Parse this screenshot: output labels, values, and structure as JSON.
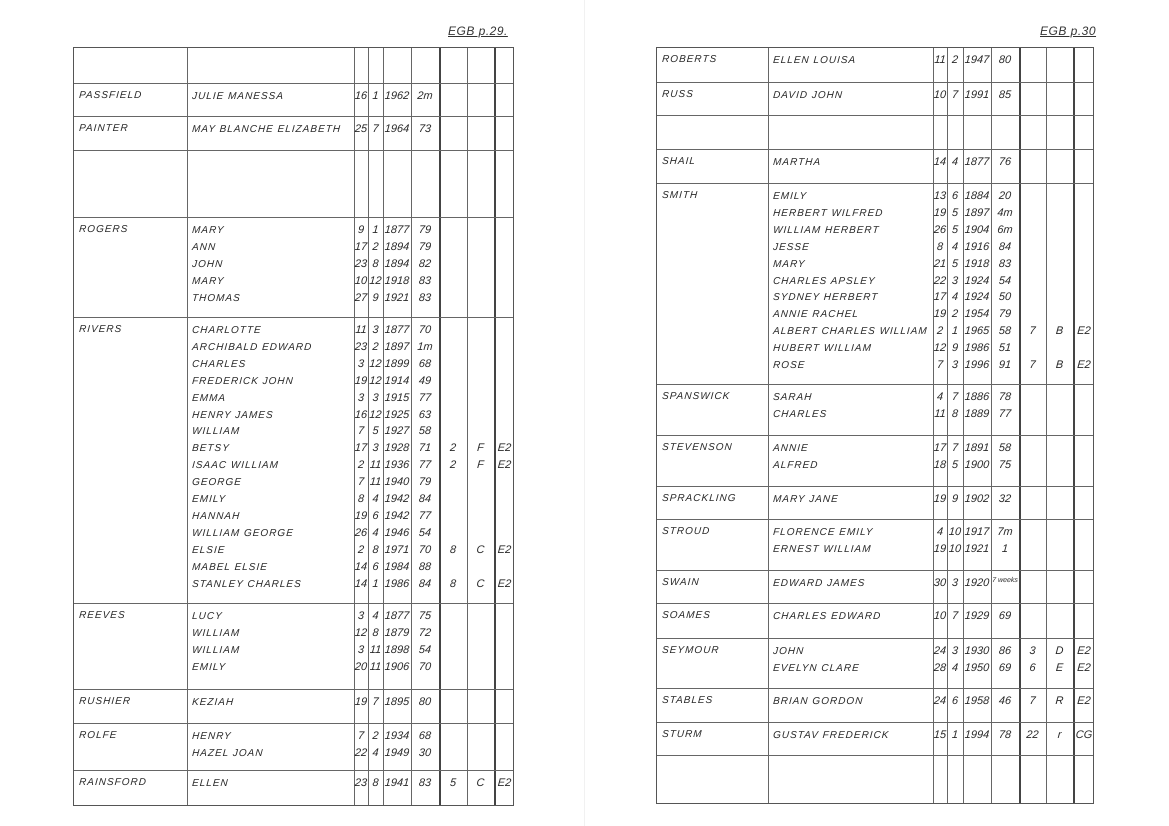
{
  "pages": [
    {
      "ref": "EGB p.29.",
      "groups": [
        {
          "surname": "",
          "entries": []
        },
        {
          "surname": "PASSFIELD",
          "entries": [
            {
              "forename": "JULIE MANESSA",
              "day": "16",
              "month": "1",
              "year": "1962",
              "age": "2m"
            }
          ]
        },
        {
          "surname": "PAINTER",
          "entries": [
            {
              "forename": "MAY BLANCHE ELIZABETH",
              "day": "25",
              "month": "7",
              "year": "1964",
              "age": "73"
            }
          ]
        },
        {
          "surname": "",
          "entries": []
        },
        {
          "surname": "ROGERS",
          "entries": [
            {
              "forename": "MARY",
              "day": "9",
              "month": "1",
              "year": "1877",
              "age": "79"
            },
            {
              "forename": "ANN",
              "day": "17",
              "month": "2",
              "year": "1894",
              "age": "79"
            },
            {
              "forename": "JOHN",
              "day": "23",
              "month": "8",
              "year": "1894",
              "age": "82"
            },
            {
              "forename": "MARY",
              "day": "10",
              "month": "12",
              "year": "1918",
              "age": "83"
            },
            {
              "forename": "THOMAS",
              "day": "27",
              "month": "9",
              "year": "1921",
              "age": "83"
            }
          ]
        },
        {
          "surname": "RIVERS",
          "entries": [
            {
              "forename": "CHARLOTTE",
              "day": "11",
              "month": "3",
              "year": "1877",
              "age": "70"
            },
            {
              "forename": "ARCHIBALD EDWARD",
              "day": "23",
              "month": "2",
              "year": "1897",
              "age": "1m"
            },
            {
              "forename": "CHARLES",
              "day": "3",
              "month": "12",
              "year": "1899",
              "age": "68"
            },
            {
              "forename": "FREDERICK JOHN",
              "day": "19",
              "month": "12",
              "year": "1914",
              "age": "49"
            },
            {
              "forename": "EMMA",
              "day": "3",
              "month": "3",
              "year": "1915",
              "age": "77"
            },
            {
              "forename": "HENRY JAMES",
              "day": "16",
              "month": "12",
              "year": "1925",
              "age": "63"
            },
            {
              "forename": "WILLIAM",
              "day": "7",
              "month": "5",
              "year": "1927",
              "age": "58"
            },
            {
              "forename": "BETSY",
              "day": "17",
              "month": "3",
              "year": "1928",
              "age": "71",
              "c1": "2",
              "c2": "F",
              "c3": "E2"
            },
            {
              "forename": "ISAAC WILLIAM",
              "day": "2",
              "month": "11",
              "year": "1936",
              "age": "77",
              "c1": "2",
              "c2": "F",
              "c3": "E2"
            },
            {
              "forename": "GEORGE",
              "day": "7",
              "month": "11",
              "year": "1940",
              "age": "79"
            },
            {
              "forename": "EMILY",
              "day": "8",
              "month": "4",
              "year": "1942",
              "age": "84"
            },
            {
              "forename": "HANNAH",
              "day": "19",
              "month": "6",
              "year": "1942",
              "age": "77"
            },
            {
              "forename": "WILLIAM GEORGE",
              "day": "26",
              "month": "4",
              "year": "1946",
              "age": "54"
            },
            {
              "forename": "ELSIE",
              "day": "2",
              "month": "8",
              "year": "1971",
              "age": "70",
              "c1": "8",
              "c2": "C",
              "c3": "E2"
            },
            {
              "forename": "MABEL ELSIE",
              "day": "14",
              "month": "6",
              "year": "1984",
              "age": "88"
            },
            {
              "forename": "STANLEY CHARLES",
              "day": "14",
              "month": "1",
              "year": "1986",
              "age": "84",
              "c1": "8",
              "c2": "C",
              "c3": "E2"
            }
          ]
        },
        {
          "surname": "REEVES",
          "entries": [
            {
              "forename": "LUCY",
              "day": "3",
              "month": "4",
              "year": "1877",
              "age": "75"
            },
            {
              "forename": "WILLIAM",
              "day": "12",
              "month": "8",
              "year": "1879",
              "age": "72"
            },
            {
              "forename": "WILLIAM",
              "day": "3",
              "month": "11",
              "year": "1898",
              "age": "54"
            },
            {
              "forename": "EMILY",
              "day": "20",
              "month": "11",
              "year": "1906",
              "age": "70"
            }
          ]
        },
        {
          "surname": "RUSHIER",
          "entries": [
            {
              "forename": "KEZIAH",
              "day": "19",
              "month": "7",
              "year": "1895",
              "age": "80"
            }
          ]
        },
        {
          "surname": "ROLFE",
          "entries": [
            {
              "forename": "HENRY",
              "day": "7",
              "month": "2",
              "year": "1934",
              "age": "68"
            },
            {
              "forename": "HAZEL JOAN",
              "day": "22",
              "month": "4",
              "year": "1949",
              "age": "30"
            }
          ]
        },
        {
          "surname": "RAINSFORD",
          "entries": [
            {
              "forename": "ELLEN",
              "day": "23",
              "month": "8",
              "year": "1941",
              "age": "83",
              "c1": "5",
              "c2": "C",
              "c3": "E2"
            }
          ]
        }
      ]
    },
    {
      "ref": "EGB p.30",
      "groups": [
        {
          "surname": "ROBERTS",
          "entries": [
            {
              "forename": "ELLEN LOUISA",
              "day": "11",
              "month": "2",
              "year": "1947",
              "age": "80"
            }
          ]
        },
        {
          "surname": "RUSS",
          "entries": [
            {
              "forename": "DAVID JOHN",
              "day": "10",
              "month": "7",
              "year": "1991",
              "age": "85"
            }
          ]
        },
        {
          "surname": "",
          "entries": []
        },
        {
          "surname": "SHAIL",
          "entries": [
            {
              "forename": "MARTHA",
              "day": "14",
              "month": "4",
              "year": "1877",
              "age": "76"
            }
          ]
        },
        {
          "surname": "SMITH",
          "entries": [
            {
              "forename": "EMILY",
              "day": "13",
              "month": "6",
              "year": "1884",
              "age": "20"
            },
            {
              "forename": "HERBERT WILFRED",
              "day": "19",
              "month": "5",
              "year": "1897",
              "age": "4m"
            },
            {
              "forename": "WILLIAM HERBERT",
              "day": "26",
              "month": "5",
              "year": "1904",
              "age": "6m"
            },
            {
              "forename": "JESSE",
              "day": "8",
              "month": "4",
              "year": "1916",
              "age": "84"
            },
            {
              "forename": "MARY",
              "day": "21",
              "month": "5",
              "year": "1918",
              "age": "83"
            },
            {
              "forename": "CHARLES APSLEY",
              "day": "22",
              "month": "3",
              "year": "1924",
              "age": "54"
            },
            {
              "forename": "SYDNEY HERBERT",
              "day": "17",
              "month": "4",
              "year": "1924",
              "age": "50"
            },
            {
              "forename": "ANNIE RACHEL",
              "day": "19",
              "month": "2",
              "year": "1954",
              "age": "79"
            },
            {
              "forename": "ALBERT CHARLES WILLIAM",
              "day": "2",
              "month": "1",
              "year": "1965",
              "age": "58",
              "c1": "7",
              "c2": "B",
              "c3": "E2"
            },
            {
              "forename": "HUBERT WILLIAM",
              "day": "12",
              "month": "9",
              "year": "1986",
              "age": "51"
            },
            {
              "forename": "ROSE",
              "day": "7",
              "month": "3",
              "year": "1996",
              "age": "91",
              "c1": "7",
              "c2": "B",
              "c3": "E2"
            }
          ]
        },
        {
          "surname": "SPANSWICK",
          "entries": [
            {
              "forename": "SARAH",
              "day": "4",
              "month": "7",
              "year": "1886",
              "age": "78"
            },
            {
              "forename": "CHARLES",
              "day": "11",
              "month": "8",
              "year": "1889",
              "age": "77"
            }
          ]
        },
        {
          "surname": "STEVENSON",
          "entries": [
            {
              "forename": "ANNIE",
              "day": "17",
              "month": "7",
              "year": "1891",
              "age": "58"
            },
            {
              "forename": "ALFRED",
              "day": "18",
              "month": "5",
              "year": "1900",
              "age": "75"
            }
          ]
        },
        {
          "surname": "SPRACKLING",
          "entries": [
            {
              "forename": "MARY JANE",
              "day": "19",
              "month": "9",
              "year": "1902",
              "age": "32"
            }
          ]
        },
        {
          "surname": "STROUD",
          "entries": [
            {
              "forename": "FLORENCE EMILY",
              "day": "4",
              "month": "10",
              "year": "1917",
              "age": "7m"
            },
            {
              "forename": "ERNEST WILLIAM",
              "day": "19",
              "month": "10",
              "year": "1921",
              "age": "1"
            }
          ]
        },
        {
          "surname": "SWAIN",
          "entries": [
            {
              "forename": "EDWARD JAMES",
              "day": "30",
              "month": "3",
              "year": "1920",
              "age": "7 weeks"
            }
          ]
        },
        {
          "surname": "SOAMES",
          "entries": [
            {
              "forename": "CHARLES EDWARD",
              "day": "10",
              "month": "7",
              "year": "1929",
              "age": "69"
            }
          ]
        },
        {
          "surname": "SEYMOUR",
          "entries": [
            {
              "forename": "JOHN",
              "day": "24",
              "month": "3",
              "year": "1930",
              "age": "86",
              "c1": "3",
              "c2": "D",
              "c3": "E2"
            },
            {
              "forename": "EVELYN CLARE",
              "day": "28",
              "month": "4",
              "year": "1950",
              "age": "69",
              "c1": "6",
              "c2": "E",
              "c3": "E2"
            }
          ]
        },
        {
          "surname": "STABLES",
          "entries": [
            {
              "forename": "BRIAN GORDON",
              "day": "24",
              "month": "6",
              "year": "1958",
              "age": "46",
              "c1": "7",
              "c2": "R",
              "c3": "E2"
            }
          ]
        },
        {
          "surname": "STURM",
          "entries": [
            {
              "forename": "GUSTAV FREDERICK",
              "day": "15",
              "month": "1",
              "year": "1994",
              "age": "78",
              "c1": "22",
              "c2": "r",
              "c3": "CG"
            }
          ]
        },
        {
          "surname": "",
          "entries": []
        }
      ]
    }
  ]
}
